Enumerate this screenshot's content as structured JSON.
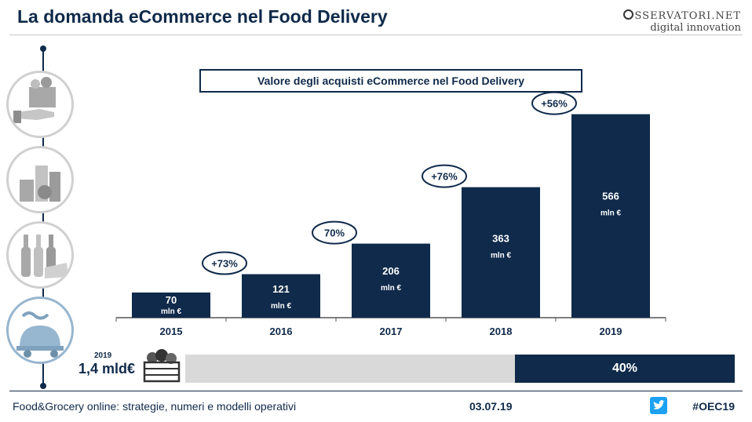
{
  "header": {
    "title": "La domanda eCommerce nel Food Delivery"
  },
  "logo": {
    "line1": "SSERVATORI.NET",
    "line2": "digital innovation"
  },
  "icons": [
    "grocery-bag-hand-icon",
    "packaged-food-icon",
    "wine-cheese-icon",
    "food-delivery-icon"
  ],
  "chart_data": {
    "type": "bar",
    "title": "Valore degli acquisti eCommerce nel Food Delivery",
    "categories": [
      "2015",
      "2016",
      "2017",
      "2018",
      "2019"
    ],
    "values": [
      70,
      121,
      206,
      363,
      566
    ],
    "unit": "mln €",
    "growth": [
      "",
      "+73%",
      "70%",
      "+76%",
      "+56%"
    ],
    "ylim": [
      0,
      600
    ],
    "bar_color": "#0f2a4a"
  },
  "total": {
    "year": "2019",
    "value": "1,4 mld€",
    "share_percent": 40,
    "share_label": "40%"
  },
  "footer": {
    "left": "Food&Grocery online: strategie, numeri e modelli operativi",
    "date": "03.07.19",
    "hashtag": "#OEC19"
  },
  "colors": {
    "accent": "#0f2a4a",
    "grey_bar": "#d9d9d9",
    "twitter": "#1da1f2"
  }
}
